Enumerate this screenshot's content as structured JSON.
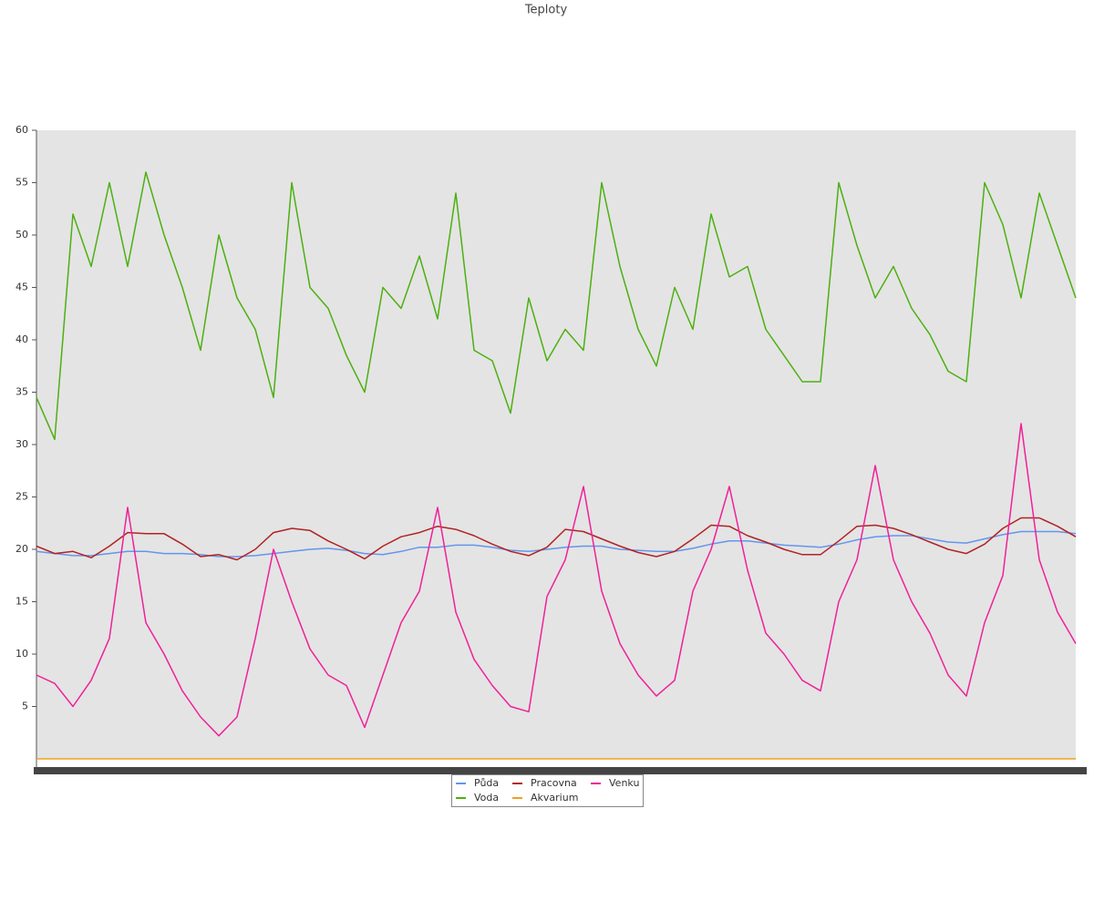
{
  "chart_data": {
    "type": "line",
    "title": "Teploty",
    "categories": [
      null,
      null,
      null,
      null,
      null,
      null,
      null,
      null,
      null,
      null,
      null,
      null,
      null,
      null,
      null,
      null,
      null,
      null,
      null,
      null,
      null,
      null,
      null,
      null,
      null,
      null,
      null,
      null,
      null,
      null,
      null,
      null,
      null,
      null,
      null,
      null,
      null,
      null,
      null,
      null,
      null,
      null,
      null,
      null,
      null,
      null,
      null,
      null,
      null,
      null,
      null,
      null,
      null,
      null,
      null,
      null,
      null,
      null
    ],
    "ylim": [
      0,
      60
    ],
    "yticks": [
      5,
      10,
      15,
      20,
      25,
      30,
      35,
      40,
      45,
      50,
      55,
      60
    ],
    "series": [
      {
        "name": "Půda",
        "color": "#6495ed",
        "values": [
          19.8,
          19.6,
          19.4,
          19.4,
          19.6,
          19.8,
          19.8,
          19.6,
          19.6,
          19.5,
          19.3,
          19.3,
          19.4,
          19.6,
          19.8,
          20,
          20.1,
          19.9,
          19.6,
          19.5,
          19.8,
          20.2,
          20.2,
          20.4,
          20.4,
          20.2,
          19.9,
          19.8,
          20,
          20.2,
          20.3,
          20.3,
          20,
          19.9,
          19.8,
          19.8,
          20.1,
          20.5,
          20.8,
          20.8,
          20.6,
          20.4,
          20.3,
          20.2,
          20.5,
          20.9,
          21.2,
          21.3,
          21.3,
          21,
          20.7,
          20.6,
          21,
          21.4,
          21.7,
          21.7,
          21.7,
          21.5
        ]
      },
      {
        "name": "Voda",
        "color": "#4cb010",
        "values": [
          34.5,
          30.5,
          52,
          47,
          55,
          47,
          56,
          50,
          45,
          39,
          50,
          44,
          41,
          34.5,
          55,
          45,
          43,
          38.5,
          35,
          45,
          43,
          48,
          42,
          54,
          39,
          38,
          33,
          44,
          38,
          41,
          39,
          55,
          47,
          41,
          37.5,
          45,
          41,
          52,
          46,
          47,
          41,
          38.5,
          36,
          36,
          55,
          49,
          44,
          47,
          43,
          40.5,
          37,
          36,
          55,
          51,
          44,
          54,
          49,
          44
        ]
      },
      {
        "name": "Pracovna",
        "color": "#b22222",
        "values": [
          20.3,
          19.6,
          19.8,
          19.2,
          20.3,
          21.6,
          21.5,
          21.5,
          20.5,
          19.3,
          19.5,
          19,
          20,
          21.6,
          22,
          21.8,
          20.8,
          20,
          19.1,
          20.3,
          21.2,
          21.6,
          22.2,
          21.9,
          21.3,
          20.5,
          19.8,
          19.4,
          20.2,
          21.9,
          21.7,
          21,
          20.3,
          19.7,
          19.3,
          19.8,
          21,
          22.3,
          22.2,
          21.3,
          20.7,
          20,
          19.5,
          19.5,
          20.8,
          22.2,
          22.3,
          22,
          21.4,
          20.7,
          20,
          19.6,
          20.5,
          22,
          23,
          23,
          22.2,
          21.2
        ]
      },
      {
        "name": "Akvarium",
        "color": "#f0a020",
        "values": [
          0,
          0,
          0,
          0,
          0,
          0,
          0,
          0,
          0,
          0,
          0,
          0,
          0,
          0,
          0,
          0,
          0,
          0,
          0,
          0,
          0,
          0,
          0,
          0,
          0,
          0,
          0,
          0,
          0,
          0,
          0,
          0,
          0,
          0,
          0,
          0,
          0,
          0,
          0,
          0,
          0,
          0,
          0,
          0,
          0,
          0,
          0,
          0,
          0,
          0,
          0,
          0,
          0,
          0,
          0,
          0,
          0,
          0
        ]
      },
      {
        "name": "Venku",
        "color": "#f0209a",
        "values": [
          8,
          7.2,
          5,
          7.5,
          11.5,
          24,
          13,
          10,
          6.5,
          4,
          2.2,
          4,
          11.5,
          20,
          15,
          10.5,
          8,
          7,
          3,
          8,
          13,
          16,
          24,
          14,
          9.5,
          7,
          5,
          4.5,
          15.5,
          19,
          26,
          16,
          11,
          8,
          6,
          7.5,
          16,
          20,
          26,
          18,
          12,
          10,
          7.5,
          6.5,
          15,
          19,
          28,
          19,
          15,
          12,
          8,
          6,
          13,
          17.5,
          32,
          19,
          14,
          11
        ]
      }
    ]
  }
}
